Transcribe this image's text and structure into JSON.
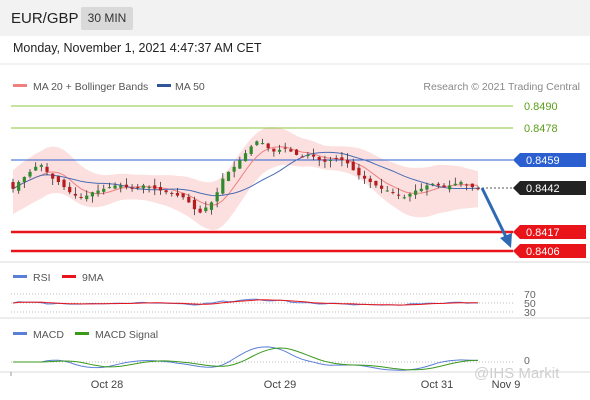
{
  "header": {
    "symbol": "EUR/GBP",
    "timeframe": "30 MIN"
  },
  "timestamp": "Monday, November 1, 2021 4:47:37 AM CET",
  "legend_main": [
    {
      "label": "MA 20 + Bollinger Bands",
      "color": "#f08080"
    },
    {
      "label": "MA 50",
      "color": "#2f5597"
    }
  ],
  "copyright": "Research © 2021 Trading Central",
  "watermark": "@IHS Markit",
  "levels": [
    {
      "value": "0.8490",
      "kind": "resistance",
      "color": "#8dc63f",
      "text_color": "#5a9e1a"
    },
    {
      "value": "0.8478",
      "kind": "resistance",
      "color": "#8dc63f",
      "text_color": "#5a9e1a"
    },
    {
      "value": "0.8459",
      "kind": "pivot",
      "color": "#2b5fd0"
    },
    {
      "value": "0.8442",
      "kind": "last",
      "color": "#222222"
    },
    {
      "value": "0.8417",
      "kind": "target",
      "color": "#e8141a"
    },
    {
      "value": "0.8406",
      "kind": "target",
      "color": "#e8141a"
    }
  ],
  "rsi": {
    "legend": [
      {
        "label": "RSI",
        "color": "#5b7fd6"
      },
      {
        "label": "9MA",
        "color": "#e8141a"
      }
    ],
    "levels": [
      "70",
      "50",
      "30"
    ]
  },
  "macd": {
    "legend": [
      {
        "label": "MACD",
        "color": "#5b7fd6"
      },
      {
        "label": "MACD Signal",
        "color": "#3a9a1a"
      }
    ],
    "zero_label": "0"
  },
  "x_labels": [
    "Oct 28",
    "Oct 29",
    "Oct 31",
    "Nov 9"
  ],
  "chart_data": {
    "type": "candlestick",
    "title": "EUR/GBP",
    "timeframe": "30 MIN",
    "y_range": [
      0.84,
      0.8495
    ],
    "last_price": 0.8442,
    "support_resistance": [
      0.849,
      0.8478,
      0.8459,
      0.8442,
      0.8417,
      0.8406
    ],
    "forecast": {
      "from": 0.8442,
      "to": 0.8417,
      "direction": "down"
    },
    "x_ticks": [
      "Oct 28",
      "Oct 29",
      "Oct 31",
      "Nov 9"
    ],
    "close_series": [
      0.8442,
      0.8446,
      0.8449,
      0.8452,
      0.8455,
      0.8456,
      0.8452,
      0.8448,
      0.8446,
      0.8443,
      0.844,
      0.8438,
      0.8437,
      0.8438,
      0.844,
      0.8441,
      0.8442,
      0.8443,
      0.8444,
      0.8444,
      0.8443,
      0.8442,
      0.8443,
      0.8444,
      0.8443,
      0.8442,
      0.8441,
      0.844,
      0.8439,
      0.8438,
      0.8437,
      0.8434,
      0.843,
      0.8428,
      0.8431,
      0.8434,
      0.844,
      0.8448,
      0.8452,
      0.8455,
      0.8459,
      0.8463,
      0.8467,
      0.847,
      0.8469,
      0.8466,
      0.8464,
      0.8465,
      0.8466,
      0.8464,
      0.8462,
      0.8461,
      0.8462,
      0.8461,
      0.8459,
      0.8458,
      0.8459,
      0.846,
      0.8459,
      0.8457,
      0.8453,
      0.845,
      0.8448,
      0.8446,
      0.8444,
      0.8442,
      0.8441,
      0.844,
      0.8438,
      0.8437,
      0.8439,
      0.8441,
      0.8442,
      0.8444,
      0.8445,
      0.8444,
      0.8443,
      0.8444,
      0.8445,
      0.8446,
      0.8444,
      0.8443,
      0.8442
    ],
    "rsi_levels": [
      70,
      50,
      30
    ]
  }
}
